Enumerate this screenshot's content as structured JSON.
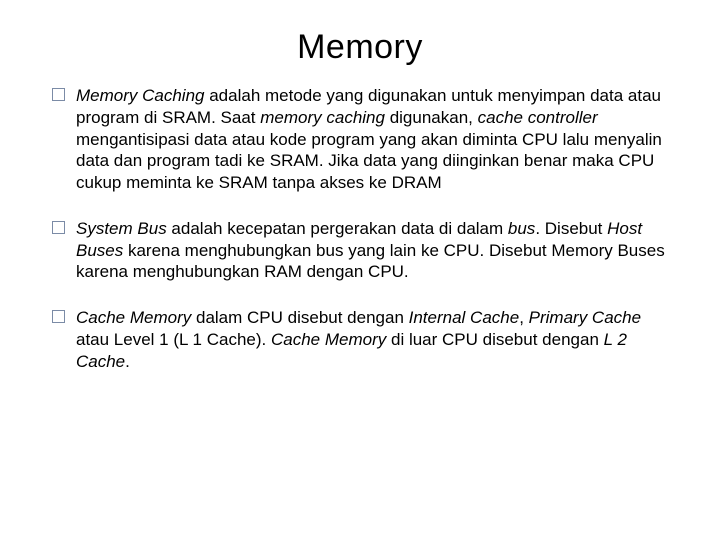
{
  "slide": {
    "title": "Memory",
    "title_fontsize": 34,
    "body_fontsize": 17,
    "line_height": 1.28,
    "bullet_box": {
      "size": 13,
      "border_color": "#7b8ba6",
      "border_width": 1.5
    },
    "background_color": "#ffffff",
    "text_color": "#000000",
    "bullets": [
      {
        "runs": [
          {
            "text": "Memory Caching",
            "italic": true
          },
          {
            "text": " adalah metode yang digunakan untuk menyimpan data atau program di SRAM. Saat ",
            "italic": false
          },
          {
            "text": "memory caching",
            "italic": true
          },
          {
            "text": " digunakan, ",
            "italic": false
          },
          {
            "text": "cache controller",
            "italic": true
          },
          {
            "text": " mengantisipasi data atau kode program yang akan diminta CPU lalu menyalin data dan program tadi ke SRAM. Jika data yang diinginkan benar maka CPU cukup meminta ke SRAM tanpa akses ke DRAM",
            "italic": false
          }
        ]
      },
      {
        "runs": [
          {
            "text": "System Bus",
            "italic": true
          },
          {
            "text": " adalah kecepatan pergerakan data di dalam ",
            "italic": false
          },
          {
            "text": "bus",
            "italic": true
          },
          {
            "text": ". Disebut ",
            "italic": false
          },
          {
            "text": "Host Buses",
            "italic": true
          },
          {
            "text": " karena menghubungkan bus yang lain ke CPU. Disebut Memory Buses karena menghubungkan RAM dengan CPU.",
            "italic": false
          }
        ]
      },
      {
        "runs": [
          {
            "text": "Cache Memory",
            "italic": true
          },
          {
            "text": " dalam CPU disebut dengan ",
            "italic": false
          },
          {
            "text": "Internal Cache",
            "italic": true
          },
          {
            "text": ", ",
            "italic": false
          },
          {
            "text": "Primary Cache",
            "italic": true
          },
          {
            "text": " atau Level 1 (L 1 Cache). ",
            "italic": false
          },
          {
            "text": "Cache Memory ",
            "italic": true
          },
          {
            "text": "di luar CPU disebut dengan ",
            "italic": false
          },
          {
            "text": "L 2 Cache",
            "italic": true
          },
          {
            "text": ".",
            "italic": false
          }
        ]
      }
    ]
  }
}
